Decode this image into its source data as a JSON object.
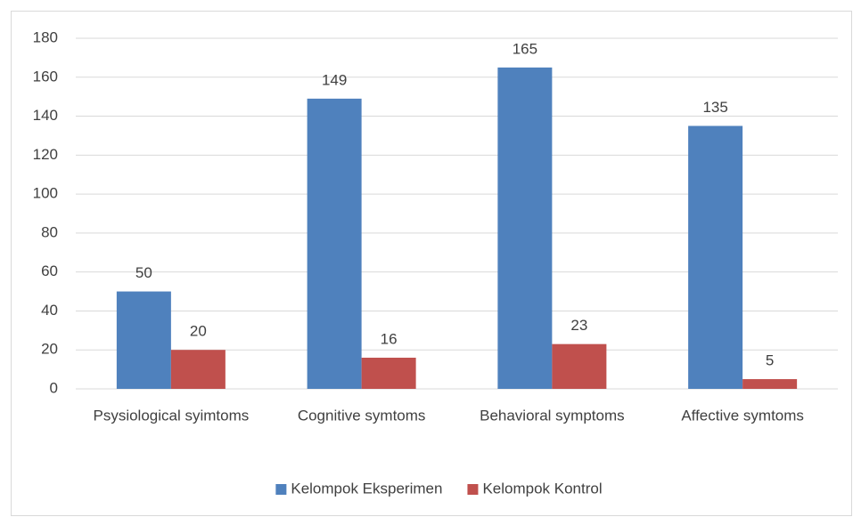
{
  "chart_data": {
    "type": "bar",
    "categories": [
      "Psysiological syimtoms",
      "Cognitive symtoms",
      "Behavioral symptoms",
      "Affective symtoms"
    ],
    "series": [
      {
        "name": "Kelompok Eksperimen",
        "color": "#4f81bd",
        "values": [
          50,
          149,
          165,
          135
        ]
      },
      {
        "name": "Kelompok Kontrol",
        "color": "#c0504d",
        "values": [
          20,
          16,
          23,
          5
        ]
      }
    ],
    "ylim": [
      0,
      180
    ],
    "yticks": [
      0,
      20,
      40,
      60,
      80,
      100,
      120,
      140,
      160,
      180
    ],
    "grid": true,
    "legend": "bottom"
  }
}
